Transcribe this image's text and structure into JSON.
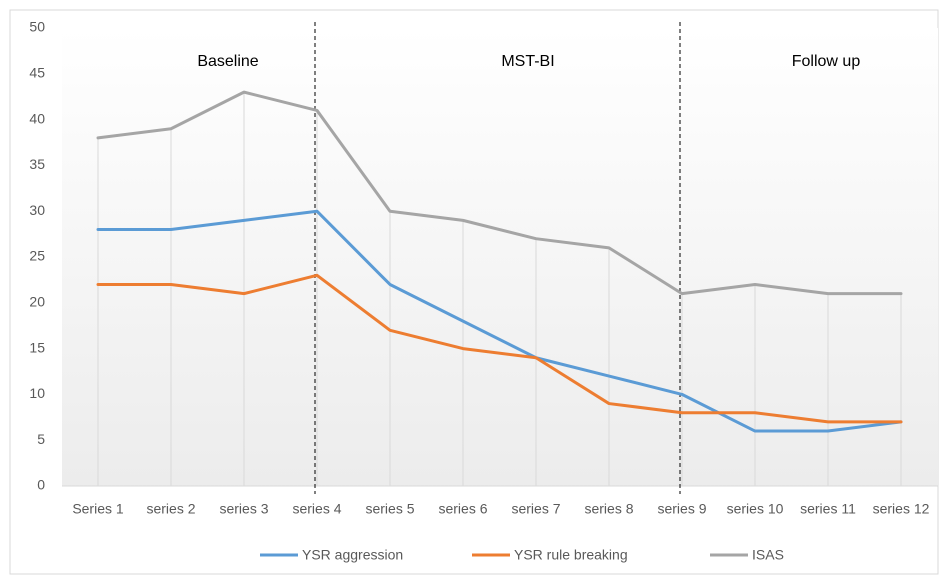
{
  "chart_data": {
    "type": "line",
    "categories": [
      "Series 1",
      "series 2",
      "series 3",
      "series 4",
      "series 5",
      "series 6",
      "series 7",
      "series 8",
      "series 9",
      "series 10",
      "series 11",
      "series 12"
    ],
    "series": [
      {
        "name": "YSR aggression",
        "color": "#5b9bd5",
        "values": [
          28,
          28,
          29,
          30,
          22,
          18,
          14,
          12,
          10,
          6,
          6,
          7
        ]
      },
      {
        "name": "YSR rule breaking",
        "color": "#ed7d31",
        "values": [
          22,
          22,
          21,
          23,
          17,
          15,
          14,
          9,
          8,
          8,
          7,
          7
        ]
      },
      {
        "name": "ISAS",
        "color": "#a5a5a5",
        "values": [
          38,
          39,
          43,
          41,
          30,
          29,
          27,
          26,
          21,
          22,
          21,
          21
        ]
      }
    ],
    "annotations": [
      "Baseline",
      "MST-BI",
      "Follow up"
    ],
    "ylim": [
      0,
      50
    ],
    "yticks": [
      0,
      5,
      10,
      15,
      20,
      25,
      30,
      35,
      40,
      45,
      50
    ],
    "legend": "bottom"
  }
}
